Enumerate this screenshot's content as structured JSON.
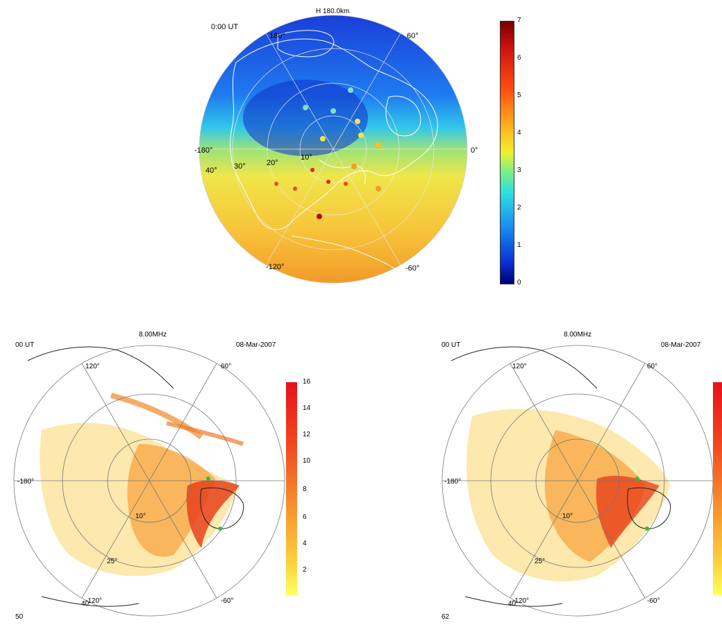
{
  "top_map": {
    "title": "H 180.0km",
    "time": "0:00  UT",
    "lon_labels": [
      "180°",
      "60°",
      "-180°",
      "0°",
      "-120°",
      "-60°"
    ],
    "lat_labels": [
      "40°",
      "30°",
      "20°",
      "10°"
    ],
    "colorbar": {
      "ticks": [
        "7",
        "6",
        "5",
        "4",
        "3",
        "2",
        "1",
        "0"
      ],
      "min": 0,
      "max": 7,
      "colormap": "jet"
    }
  },
  "bottom_left": {
    "title": "8.00MHz",
    "time": "00  UT",
    "date": "08-Mar-2007",
    "frame": "50",
    "lon_labels": [
      "120°",
      "60°",
      "-180°",
      "-120°",
      "-60°"
    ],
    "lat_labels": [
      "10°",
      "25°",
      "40"
    ],
    "colorbar": {
      "ticks": [
        "16",
        "14",
        "12",
        "10",
        "8",
        "6",
        "4",
        "2"
      ],
      "min": 0,
      "max": 16,
      "colormap": "yellow-red"
    }
  },
  "bottom_right": {
    "title": "8.00MHz",
    "time": "00  UT",
    "date": "08-Mar-2007",
    "frame": "62",
    "lon_labels": [
      "120°",
      "60°",
      "-180°",
      "-120°",
      "-60°"
    ],
    "lat_labels": [
      "10°",
      "25°",
      "40"
    ]
  },
  "chart_data": [
    {
      "type": "heatmap",
      "title": "H 180.0km",
      "projection": "polar",
      "colorbar_range": [
        0,
        7
      ],
      "colorbar_ticks": [
        0,
        1,
        2,
        3,
        4,
        5,
        6,
        7
      ]
    },
    {
      "type": "heatmap",
      "title": "8.00MHz",
      "projection": "polar",
      "colorbar_range": [
        0,
        16
      ],
      "colorbar_ticks": [
        2,
        4,
        6,
        8,
        10,
        12,
        14,
        16
      ]
    },
    {
      "type": "heatmap",
      "title": "8.00MHz",
      "projection": "polar"
    }
  ]
}
